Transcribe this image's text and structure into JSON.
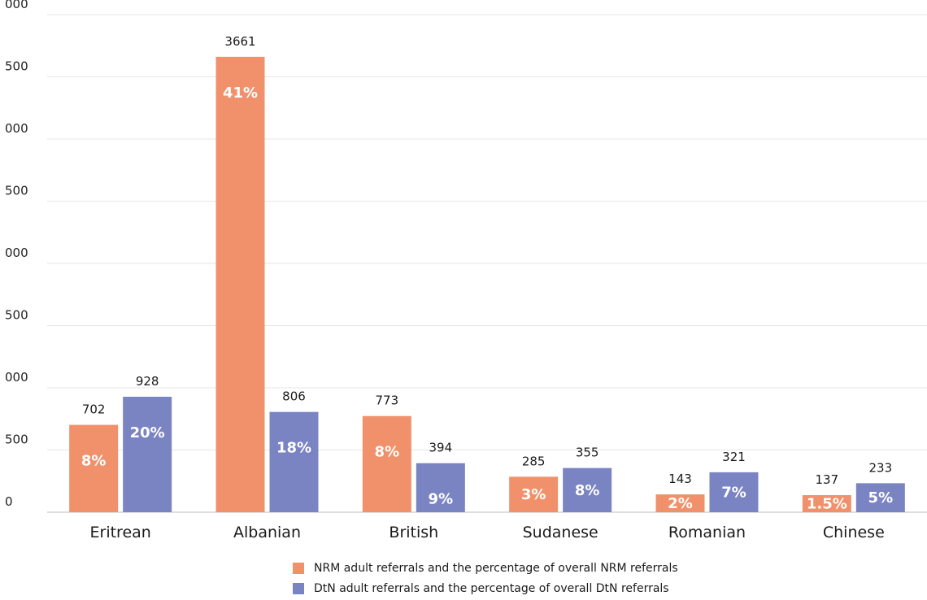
{
  "chart_data": {
    "type": "bar",
    "categories": [
      "Eritrean",
      "Albanian",
      "British",
      "Sudanese",
      "Romanian",
      "Chinese"
    ],
    "y_tick_labels": [
      "0",
      "500",
      "000",
      "500",
      "000",
      "500",
      "000",
      "500",
      "000"
    ],
    "ylim": [
      0,
      4000
    ],
    "grid": true,
    "legend_position": "bottom",
    "series": [
      {
        "name": "NRM adult referrals and the percentage of overall NRM referrals",
        "color": "#F0916B",
        "values": [
          702,
          3661,
          773,
          285,
          143,
          137
        ],
        "value_labels": [
          "702",
          "3661",
          "773",
          "285",
          "143",
          "137"
        ],
        "pct_labels": [
          "8%",
          "41%",
          "8%",
          "3%",
          "2%",
          "1.5%"
        ]
      },
      {
        "name": "DtN adult referrals and the percentage of overall DtN referrals",
        "color": "#7B84C2",
        "values": [
          928,
          806,
          394,
          355,
          321,
          233
        ],
        "value_labels": [
          "928",
          "806",
          "394",
          "355",
          "321",
          "233"
        ],
        "pct_labels": [
          "20%",
          "18%",
          "9%",
          "8%",
          "7%",
          "5%"
        ]
      }
    ]
  }
}
